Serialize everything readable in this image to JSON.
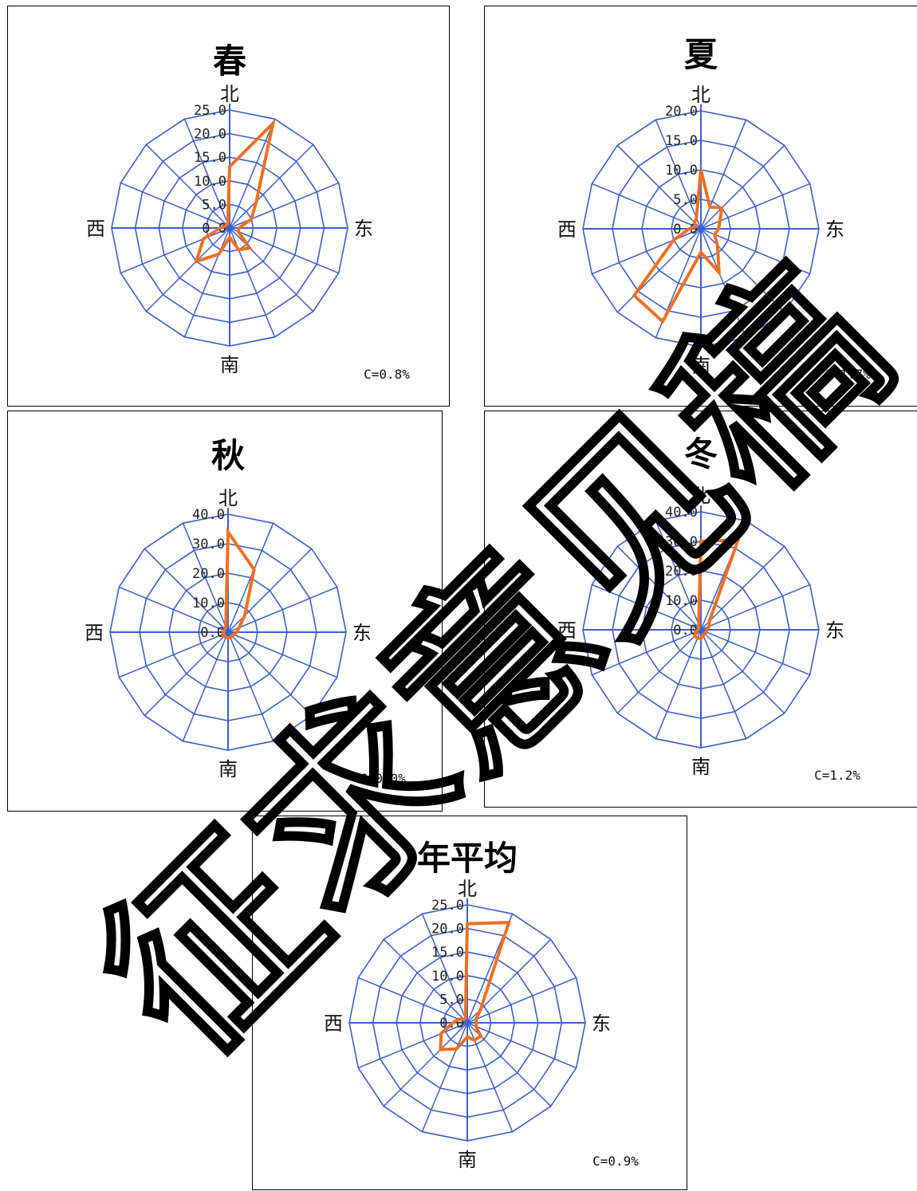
{
  "directions": [
    "北",
    "东",
    "南",
    "西"
  ],
  "colors": {
    "grid": "#3a5fd0",
    "series": "#f07020",
    "frame": "#000000"
  },
  "watermark": "征求意见稿",
  "chart_data": [
    {
      "type": "radar",
      "title": "春",
      "calm": "C=0.8%",
      "rlim": [
        0,
        25
      ],
      "ticks": [
        "25.0",
        "20.0",
        "15.0",
        "10.0",
        "5.0",
        "0.0"
      ],
      "sectors": [
        "N",
        "NNE",
        "NE",
        "ENE",
        "E",
        "ESE",
        "SE",
        "SSE",
        "S",
        "SSW",
        "SW",
        "WSW",
        "W",
        "WNW",
        "NW",
        "NNW"
      ],
      "values": [
        13,
        24,
        8,
        5,
        2,
        2,
        6,
        5,
        2,
        6,
        10,
        6,
        2,
        1,
        1,
        1
      ]
    },
    {
      "type": "radar",
      "title": "夏",
      "calm": "C=1.7%",
      "rlim": [
        0,
        20
      ],
      "ticks": [
        "20.0",
        "15.0",
        "10.0",
        "5.0",
        "0.0"
      ],
      "sectors": [
        "N",
        "NNE",
        "NE",
        "ENE",
        "E",
        "ESE",
        "SE",
        "SSE",
        "S",
        "SSW",
        "SW",
        "WSW",
        "W",
        "WNW",
        "NW",
        "NNW"
      ],
      "values": [
        10,
        4,
        5,
        3.5,
        3,
        2.5,
        4,
        8,
        4,
        17,
        16,
        5,
        2,
        1,
        1.5,
        2
      ]
    },
    {
      "type": "radar",
      "title": "秋",
      "calm": "C=0.0%",
      "rlim": [
        0,
        40
      ],
      "ticks": [
        "40.0",
        "30.0",
        "20.0",
        "10.0",
        "0.0"
      ],
      "sectors": [
        "N",
        "NNE",
        "NE",
        "ENE",
        "E",
        "ESE",
        "SE",
        "SSE",
        "S",
        "SSW",
        "SW",
        "WSW",
        "W",
        "WNW",
        "NW",
        "NNW"
      ],
      "values": [
        34,
        23,
        8,
        4,
        3,
        2,
        2,
        2,
        2,
        2,
        2,
        2,
        1.5,
        1.5,
        1.5,
        2
      ]
    },
    {
      "type": "radar",
      "title": "冬",
      "calm": "C=1.2%",
      "rlim": [
        0,
        40
      ],
      "ticks": [
        "40.0",
        "30.0",
        "20.0",
        "10.0",
        "0.0"
      ],
      "sectors": [
        "N",
        "NNE",
        "NE",
        "ENE",
        "E",
        "ESE",
        "SE",
        "SSE",
        "S",
        "SSW",
        "SW",
        "WSW",
        "W",
        "WNW",
        "NW",
        "NNW"
      ],
      "values": [
        30,
        33,
        4,
        3,
        2,
        2,
        2,
        2,
        3,
        3,
        3,
        2,
        1,
        1,
        1,
        2
      ]
    },
    {
      "type": "radar",
      "title": "年平均",
      "calm": "C=0.9%",
      "rlim": [
        0,
        25
      ],
      "ticks": [
        "25.0",
        "20.0",
        "15.0",
        "10.0",
        "5.0",
        "0.0"
      ],
      "sectors": [
        "N",
        "NNE",
        "NE",
        "ENE",
        "E",
        "ESE",
        "SE",
        "SSE",
        "S",
        "SSW",
        "SW",
        "WSW",
        "W",
        "WNW",
        "NW",
        "NNW"
      ],
      "values": [
        21,
        23,
        4,
        2,
        2,
        2,
        4,
        4,
        3,
        6,
        8,
        6,
        3,
        2,
        1,
        1
      ]
    }
  ]
}
